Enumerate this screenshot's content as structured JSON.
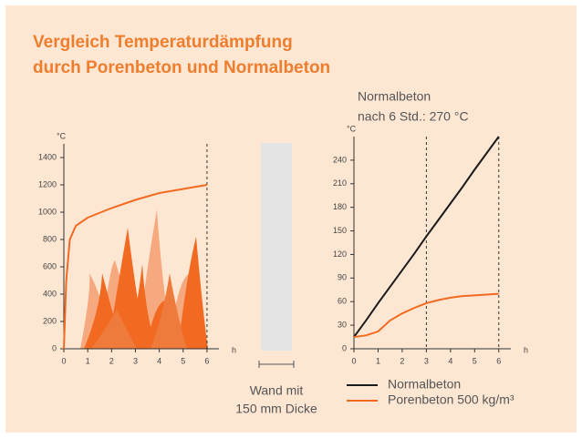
{
  "title_lines": [
    "Vergleich Temperaturdämpfung",
    "durch Porenbeton und Normalbeton"
  ],
  "wall_label": [
    "Wand mit",
    "150 mm Dicke"
  ],
  "chart_data": [
    {
      "type": "line",
      "ylabel": "°C",
      "xlabel": "h",
      "x": [
        0,
        0.1,
        0.25,
        0.5,
        1,
        2,
        3,
        4,
        5,
        6
      ],
      "series": [
        {
          "color": "#f26a21",
          "values": [
            0,
            500,
            800,
            900,
            960,
            1030,
            1090,
            1140,
            1170,
            1200
          ]
        }
      ],
      "xlim": [
        0,
        6.5
      ],
      "xticks": [
        0,
        1,
        2,
        3,
        4,
        5,
        6
      ],
      "ylim": [
        0,
        1500
      ],
      "yticks": [
        0,
        200,
        400,
        600,
        800,
        1000,
        1200,
        1400
      ],
      "vlines": [
        6
      ]
    },
    {
      "type": "line",
      "ylabel": "°C",
      "xlabel": "h",
      "annotation": [
        "Normalbeton",
        "nach 6 Std.: 270 °C"
      ],
      "x": [
        0,
        0.5,
        1,
        1.5,
        2,
        2.5,
        3,
        3.5,
        4,
        4.5,
        5,
        5.5,
        6
      ],
      "series": [
        {
          "name": "Normalbeton",
          "color": "#1a1a1a",
          "values": [
            15,
            36,
            58,
            79,
            100,
            121,
            143,
            164,
            185,
            206,
            228,
            249,
            270
          ]
        },
        {
          "name": "Porenbeton 500 kg/m³",
          "color": "#f26a21",
          "values": [
            15,
            17,
            22,
            36,
            45,
            52,
            58,
            62,
            65,
            67,
            68,
            69,
            70
          ]
        }
      ],
      "xlim": [
        0,
        6.5
      ],
      "xticks": [
        0,
        1,
        2,
        3,
        4,
        5,
        6
      ],
      "ylim": [
        0,
        270
      ],
      "yticks": [
        0,
        30,
        60,
        90,
        120,
        150,
        180,
        210,
        240
      ],
      "vlines": [
        3,
        6
      ]
    }
  ]
}
